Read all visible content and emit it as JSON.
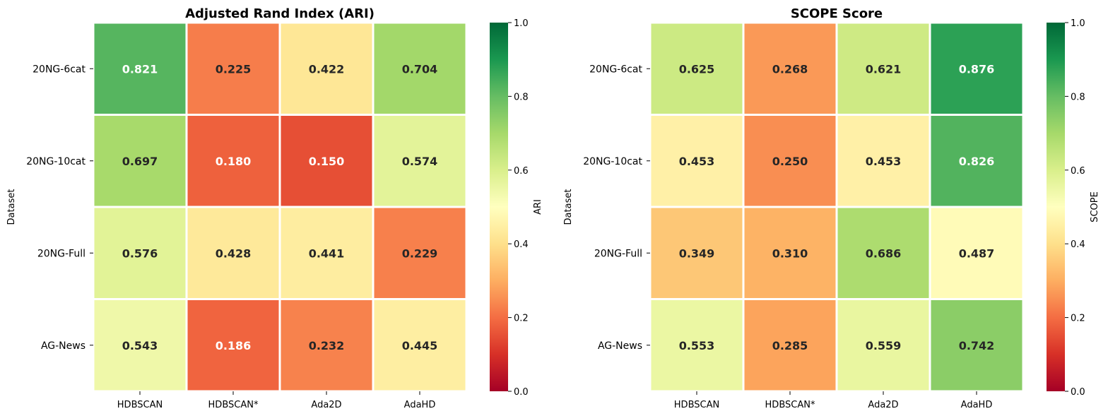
{
  "chart_data": [
    {
      "type": "heatmap",
      "title": "Adjusted Rand Index (ARI)",
      "xlabel": "",
      "ylabel": "Dataset",
      "colorbar_label": "ARI",
      "colormap": "RdYlGn",
      "vmin": 0.0,
      "vmax": 1.0,
      "colorbar_ticks": [
        "0.0",
        "0.2",
        "0.4",
        "0.6",
        "0.8",
        "1.0"
      ],
      "x_categories": [
        "HDBSCAN",
        "HDBSCAN*",
        "Ada2D",
        "AdaHD"
      ],
      "y_categories": [
        "20NG-6cat",
        "20NG-10cat",
        "20NG-Full",
        "AG-News"
      ],
      "values": [
        [
          0.821,
          0.225,
          0.422,
          0.704
        ],
        [
          0.697,
          0.18,
          0.15,
          0.574
        ],
        [
          0.576,
          0.428,
          0.441,
          0.229
        ],
        [
          0.543,
          0.186,
          0.232,
          0.445
        ]
      ]
    },
    {
      "type": "heatmap",
      "title": "SCOPE Score",
      "xlabel": "",
      "ylabel": "Dataset",
      "colorbar_label": "SCOPE",
      "colormap": "RdYlGn",
      "vmin": 0.0,
      "vmax": 1.0,
      "colorbar_ticks": [
        "0.0",
        "0.2",
        "0.4",
        "0.6",
        "0.8",
        "1.0"
      ],
      "x_categories": [
        "HDBSCAN",
        "HDBSCAN*",
        "Ada2D",
        "AdaHD"
      ],
      "y_categories": [
        "20NG-6cat",
        "20NG-10cat",
        "20NG-Full",
        "AG-News"
      ],
      "values": [
        [
          0.625,
          0.268,
          0.621,
          0.876
        ],
        [
          0.453,
          0.25,
          0.453,
          0.826
        ],
        [
          0.349,
          0.31,
          0.686,
          0.487
        ],
        [
          0.553,
          0.285,
          0.559,
          0.742
        ]
      ]
    }
  ]
}
